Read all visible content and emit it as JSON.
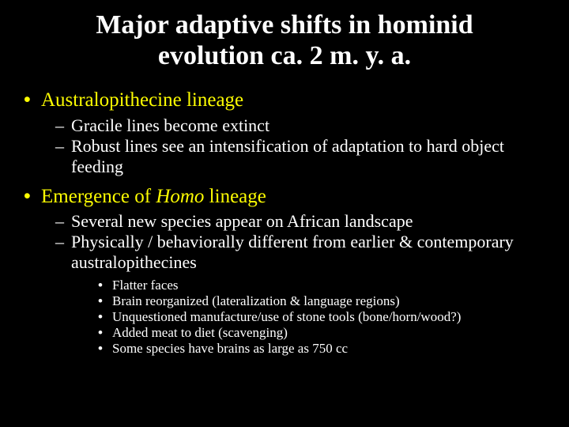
{
  "colors": {
    "background": "#000000",
    "title": "#ffffff",
    "level1": "#fdfd01",
    "level2": "#ffffff",
    "level3": "#ffffff"
  },
  "fonts": {
    "title_size": 34,
    "level1_size": 25,
    "level2_size": 22,
    "level3_size": 17
  },
  "title": "Major adaptive shifts in hominid evolution ca. 2 m. y. a.",
  "bullets": {
    "b1": {
      "text": "Australopithecine lineage",
      "sub": {
        "s1": "Gracile lines become extinct",
        "s2": "Robust lines see an intensification of adaptation to hard object feeding"
      }
    },
    "b2": {
      "text_pre": "Emergence of ",
      "text_italic": "Homo",
      "text_post": " lineage",
      "sub": {
        "s1": "Several new species appear on African landscape",
        "s2": "Physically / behaviorally different from earlier & contemporary australopithecines",
        "s2_sub": {
          "t1": "Flatter faces",
          "t2": "Brain reorganized (lateralization & language regions)",
          "t3": "Unquestioned manufacture/use of stone tools (bone/horn/wood?)",
          "t4": "Added meat to diet (scavenging)",
          "t5": "Some species have brains as large as 750 cc"
        }
      }
    }
  }
}
